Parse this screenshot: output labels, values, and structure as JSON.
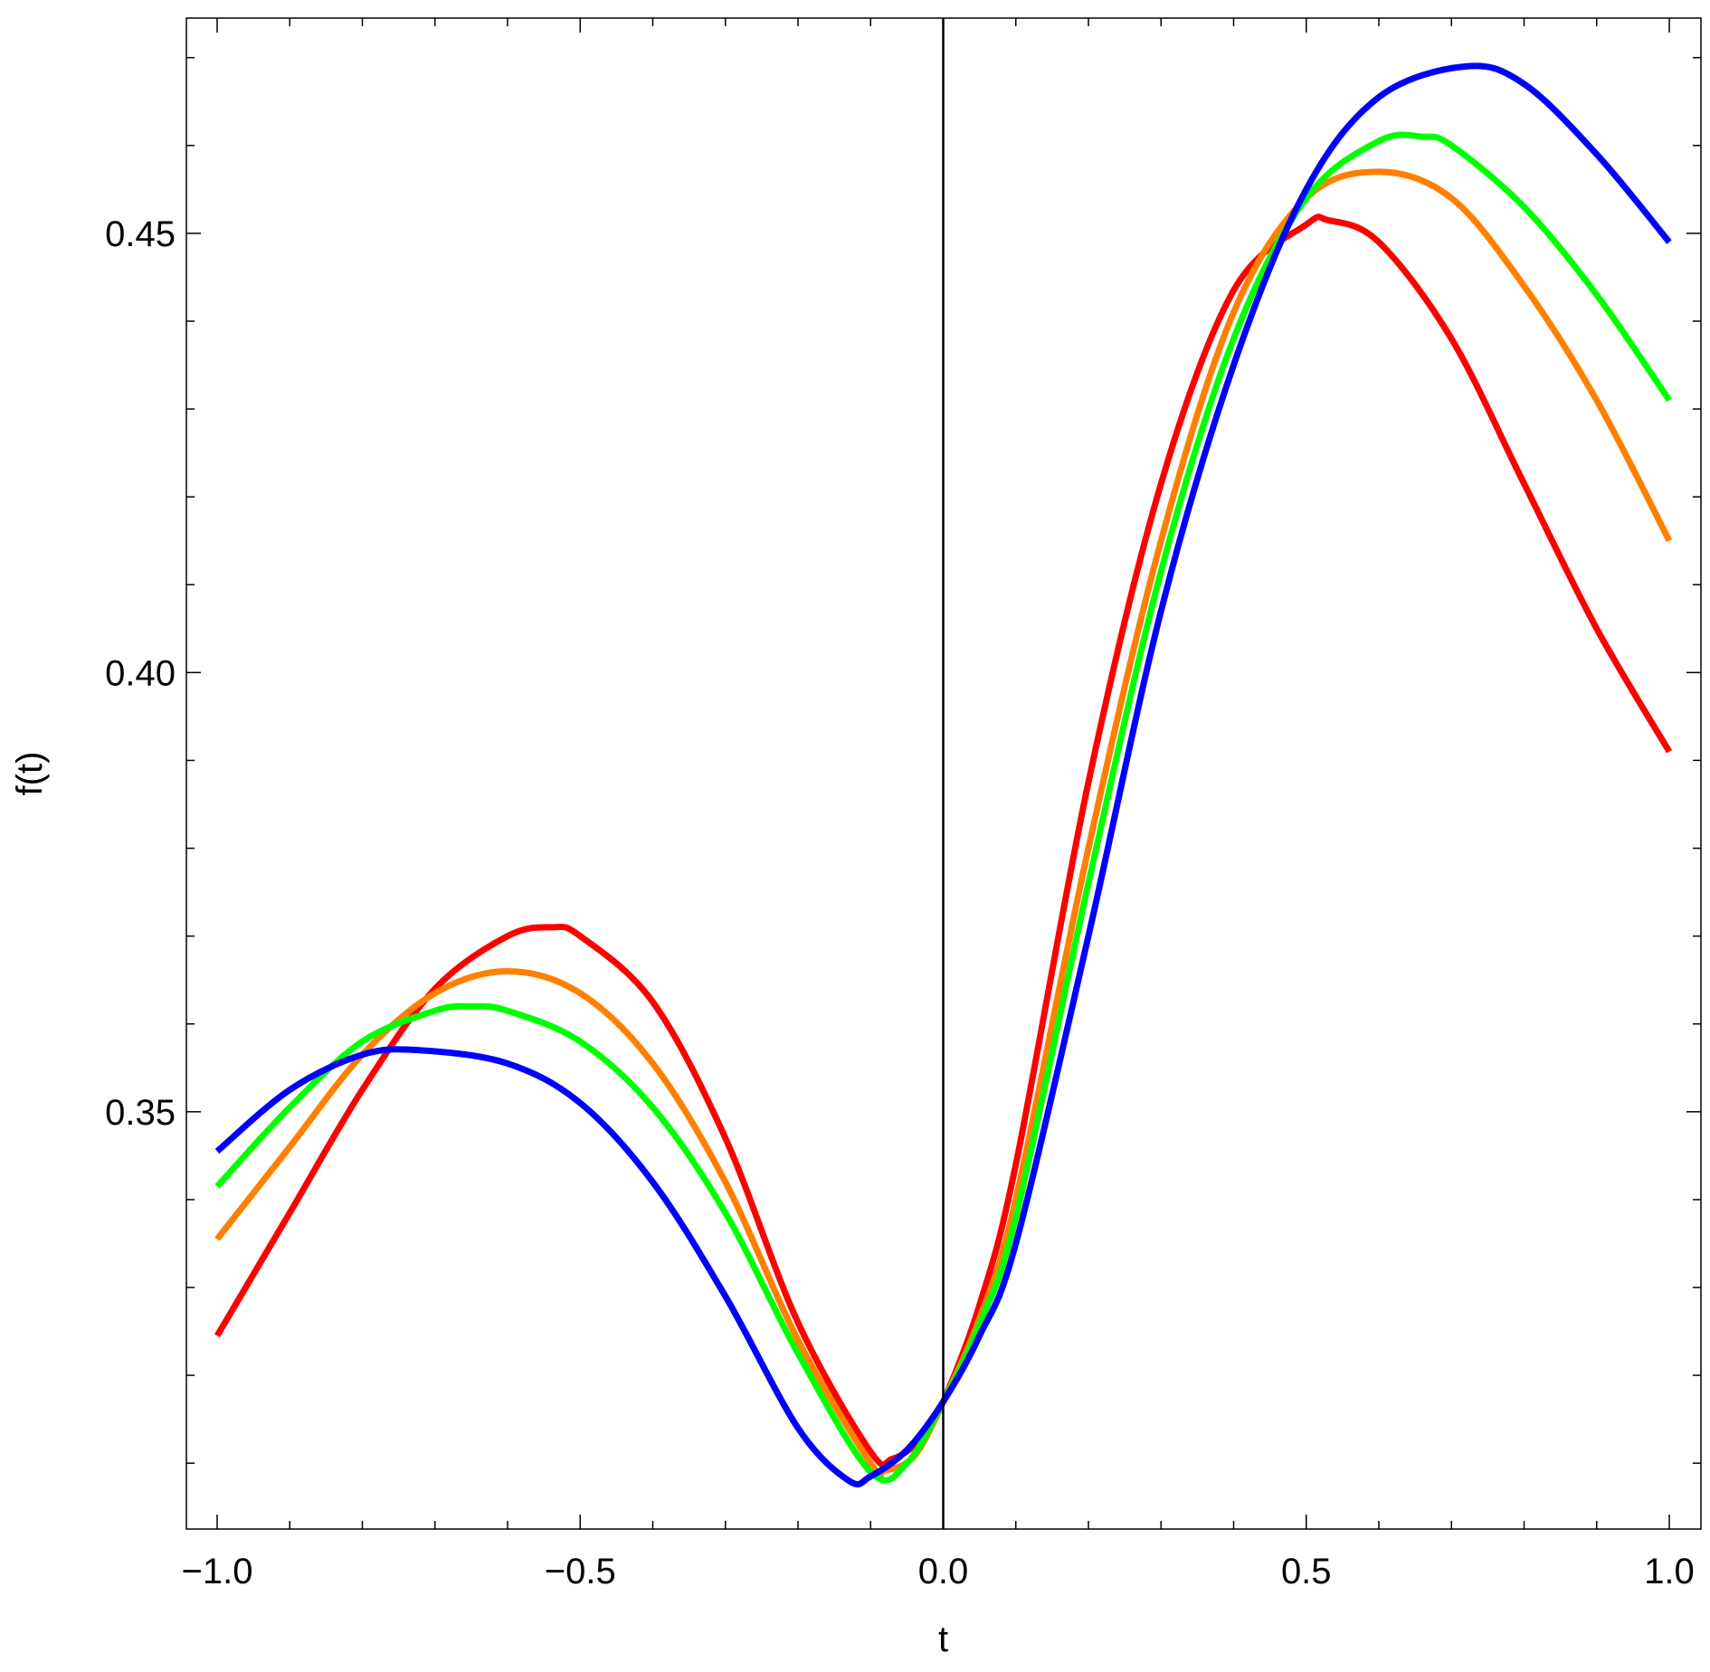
{
  "chart_data": {
    "type": "line",
    "title": "",
    "xlabel": "t",
    "ylabel": "f(t)",
    "xlim": [
      -1.0,
      1.0
    ],
    "ylim": [
      0.3025,
      0.4745
    ],
    "x_ticks": [
      -1.0,
      -0.5,
      0.0,
      0.5,
      1.0
    ],
    "x_tick_labels": [
      "−1.0",
      "−0.5",
      "0.0",
      "0.5",
      "1.0"
    ],
    "y_ticks": [
      0.35,
      0.4,
      0.45
    ],
    "y_tick_labels": [
      "0.35",
      "0.40",
      "0.45"
    ],
    "grid": false,
    "legend": "none",
    "vertical_reference_line_at_x": 0.0,
    "series": [
      {
        "color": "#ff0000",
        "points": [
          [
            -1.0,
            0.3245
          ],
          [
            -0.9,
            0.3385
          ],
          [
            -0.8,
            0.3525
          ],
          [
            -0.7,
            0.364
          ],
          [
            -0.6,
            0.37
          ],
          [
            -0.5385,
            0.371
          ],
          [
            -0.5,
            0.37
          ],
          [
            -0.4,
            0.3625
          ],
          [
            -0.3,
            0.347
          ],
          [
            -0.2,
            0.326
          ],
          [
            -0.1,
            0.3113
          ],
          [
            -0.07,
            0.3105
          ],
          [
            -0.03,
            0.3128
          ],
          [
            0.0,
            0.317
          ],
          [
            0.05,
            0.328
          ],
          [
            0.1,
            0.344
          ],
          [
            0.2,
            0.3875
          ],
          [
            0.3,
            0.4215
          ],
          [
            0.4,
            0.4435
          ],
          [
            0.5,
            0.451
          ],
          [
            0.53,
            0.4515
          ],
          [
            0.6,
            0.449
          ],
          [
            0.7,
            0.438
          ],
          [
            0.8,
            0.4215
          ],
          [
            0.9,
            0.405
          ],
          [
            1.0,
            0.391
          ]
        ]
      },
      {
        "color": "#ff8000",
        "points": [
          [
            -1.0,
            0.3355
          ],
          [
            -0.9,
            0.346
          ],
          [
            -0.8,
            0.3565
          ],
          [
            -0.7,
            0.3635
          ],
          [
            -0.6,
            0.366
          ],
          [
            -0.5,
            0.3635
          ],
          [
            -0.4,
            0.3555
          ],
          [
            -0.3,
            0.342
          ],
          [
            -0.2,
            0.324
          ],
          [
            -0.1,
            0.31
          ],
          [
            -0.08,
            0.3092
          ],
          [
            -0.04,
            0.3108
          ],
          [
            0.0,
            0.317
          ],
          [
            0.05,
            0.3265
          ],
          [
            0.1,
            0.34
          ],
          [
            0.2,
            0.38
          ],
          [
            0.3,
            0.415
          ],
          [
            0.4,
            0.441
          ],
          [
            0.5,
            0.454
          ],
          [
            0.6,
            0.457
          ],
          [
            0.7,
            0.454
          ],
          [
            0.8,
            0.444
          ],
          [
            0.9,
            0.431
          ],
          [
            1.0,
            0.415
          ]
        ]
      },
      {
        "color": "#00ff00",
        "points": [
          [
            -1.0,
            0.3415
          ],
          [
            -0.9,
            0.3505
          ],
          [
            -0.8,
            0.358
          ],
          [
            -0.7,
            0.3615
          ],
          [
            -0.65,
            0.362
          ],
          [
            -0.6,
            0.3615
          ],
          [
            -0.5,
            0.358
          ],
          [
            -0.4,
            0.3505
          ],
          [
            -0.3,
            0.3385
          ],
          [
            -0.2,
            0.3225
          ],
          [
            -0.1,
            0.309
          ],
          [
            -0.05,
            0.31
          ],
          [
            0.0,
            0.317
          ],
          [
            0.05,
            0.3258
          ],
          [
            0.1,
            0.338
          ],
          [
            0.2,
            0.376
          ],
          [
            0.3,
            0.4115
          ],
          [
            0.4,
            0.438
          ],
          [
            0.5,
            0.454
          ],
          [
            0.6,
            0.4605
          ],
          [
            0.66,
            0.461
          ],
          [
            0.7,
            0.46
          ],
          [
            0.8,
            0.453
          ],
          [
            0.9,
            0.443
          ],
          [
            1.0,
            0.431
          ]
        ]
      },
      {
        "color": "#0000ff",
        "points": [
          [
            -1.0,
            0.3455
          ],
          [
            -0.9,
            0.3525
          ],
          [
            -0.8,
            0.3565
          ],
          [
            -0.72,
            0.357
          ],
          [
            -0.6,
            0.3555
          ],
          [
            -0.5,
            0.351
          ],
          [
            -0.4,
            0.342
          ],
          [
            -0.3,
            0.329
          ],
          [
            -0.2,
            0.314
          ],
          [
            -0.13,
            0.308
          ],
          [
            -0.1,
            0.3085
          ],
          [
            -0.05,
            0.3115
          ],
          [
            0.0,
            0.317
          ],
          [
            0.05,
            0.3245
          ],
          [
            0.1,
            0.335
          ],
          [
            0.2,
            0.37
          ],
          [
            0.3,
            0.407
          ],
          [
            0.4,
            0.435
          ],
          [
            0.5,
            0.455
          ],
          [
            0.6,
            0.4655
          ],
          [
            0.72,
            0.469
          ],
          [
            0.8,
            0.467
          ],
          [
            0.9,
            0.459
          ],
          [
            1.0,
            0.449
          ]
        ]
      }
    ]
  }
}
